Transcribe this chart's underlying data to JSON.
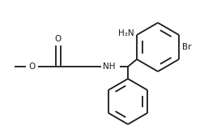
{
  "bg_color": "#ffffff",
  "line_color": "#1a1a1a",
  "line_width": 1.3,
  "font_size": 7.5,
  "labels": {
    "O_carbonyl": "O",
    "O_methoxy": "O",
    "NH": "NH",
    "NH2": "H₂N",
    "Br": "Br"
  }
}
